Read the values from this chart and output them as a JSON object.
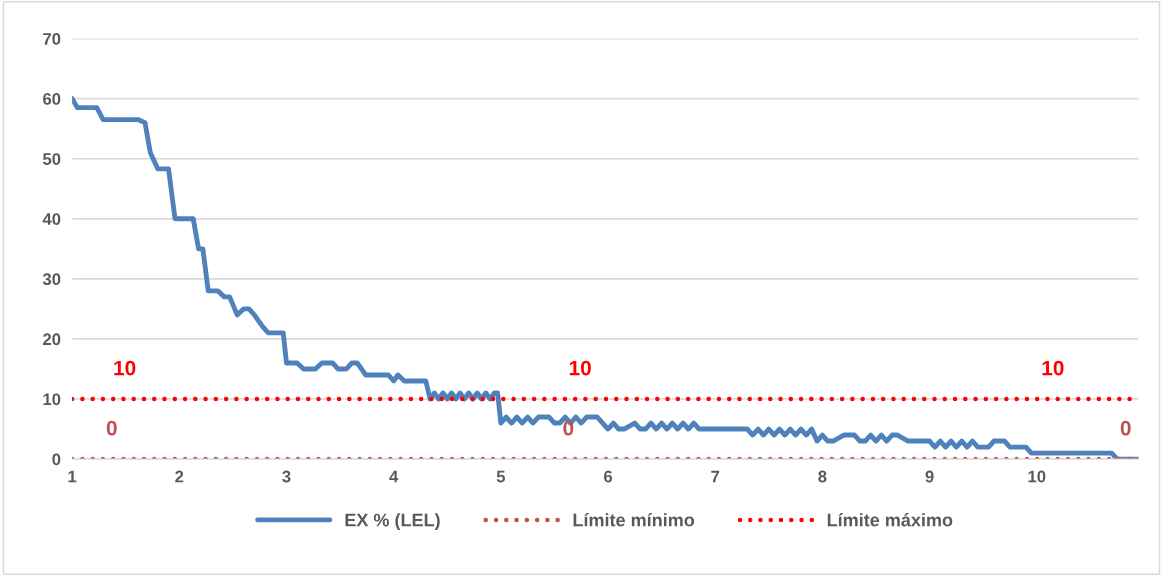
{
  "chart_data": {
    "type": "line",
    "xlim": [
      1,
      10.95
    ],
    "xticks": [
      1,
      2,
      3,
      4,
      5,
      6,
      7,
      8,
      9,
      10
    ],
    "ylim": [
      0,
      70
    ],
    "yticks": [
      0,
      10,
      20,
      30,
      40,
      50,
      60,
      70
    ],
    "grid": "y",
    "legend": "bottom",
    "line_style": "solid",
    "series": [
      {
        "name": "EX % (LEL)",
        "color": "#4f81bd",
        "x": [
          1.0,
          1.05,
          1.23,
          1.29,
          1.62,
          1.68,
          1.73,
          1.8,
          1.9,
          1.96,
          2.13,
          2.18,
          2.22,
          2.27,
          2.36,
          2.42,
          2.47,
          2.54,
          2.6,
          2.65,
          2.7,
          2.78,
          2.83,
          2.97,
          3.0,
          3.1,
          3.16,
          3.27,
          3.33,
          3.43,
          3.48,
          3.56,
          3.61,
          3.66,
          3.74,
          3.95,
          4.0,
          4.04,
          4.1,
          4.3,
          4.34,
          4.38,
          4.42,
          4.46,
          4.5,
          4.54,
          4.58,
          4.62,
          4.66,
          4.7,
          4.74,
          4.78,
          4.82,
          4.86,
          4.9,
          4.94,
          4.97,
          5.0,
          5.05,
          5.1,
          5.15,
          5.2,
          5.25,
          5.3,
          5.35,
          5.45,
          5.5,
          5.55,
          5.6,
          5.65,
          5.7,
          5.75,
          5.8,
          5.9,
          5.95,
          6.0,
          6.05,
          6.1,
          6.15,
          6.25,
          6.3,
          6.35,
          6.4,
          6.45,
          6.5,
          6.55,
          6.6,
          6.65,
          6.7,
          6.75,
          6.8,
          6.85,
          6.9,
          7.3,
          7.35,
          7.4,
          7.45,
          7.5,
          7.55,
          7.6,
          7.65,
          7.7,
          7.75,
          7.8,
          7.85,
          7.9,
          7.95,
          8.0,
          8.05,
          8.1,
          8.2,
          8.3,
          8.35,
          8.4,
          8.45,
          8.5,
          8.55,
          8.6,
          8.65,
          8.7,
          8.8,
          9.0,
          9.05,
          9.1,
          9.15,
          9.2,
          9.25,
          9.3,
          9.35,
          9.4,
          9.45,
          9.55,
          9.6,
          9.7,
          9.75,
          9.9,
          9.95,
          10.7,
          10.75,
          10.95
        ],
        "values": [
          60,
          58.5,
          58.5,
          56.5,
          56.5,
          56,
          51,
          48.3,
          48.3,
          40,
          40,
          35,
          35,
          28,
          28,
          27,
          27,
          24,
          25,
          25,
          24,
          22,
          21,
          21,
          16,
          16,
          15,
          15,
          16,
          16,
          15,
          15,
          16,
          16,
          14,
          14,
          13,
          14,
          13,
          13,
          10,
          11,
          10,
          11,
          10,
          11,
          10,
          11,
          10,
          11,
          10,
          11,
          10,
          11,
          10,
          11,
          11,
          6,
          7,
          6,
          7,
          6,
          7,
          6,
          7,
          7,
          6,
          6,
          7,
          6,
          7,
          6,
          7,
          7,
          6,
          5,
          6,
          5,
          5,
          6,
          5,
          5,
          6,
          5,
          6,
          5,
          6,
          5,
          6,
          5,
          6,
          5,
          5,
          5,
          4,
          5,
          4,
          5,
          4,
          5,
          4,
          5,
          4,
          5,
          4,
          5,
          3,
          4,
          3,
          3,
          4,
          4,
          3,
          3,
          4,
          3,
          4,
          3,
          4,
          4,
          3,
          3,
          2,
          3,
          2,
          3,
          2,
          3,
          2,
          3,
          2,
          2,
          3,
          3,
          2,
          2,
          1,
          1,
          0,
          0
        ]
      },
      {
        "name": "Límite mínimo",
        "color": "#c0504d",
        "line_style": "dotted",
        "x": [
          1,
          10.95
        ],
        "values": [
          0,
          0
        ]
      },
      {
        "name": "Límite máximo",
        "color": "#ff0000",
        "line_style": "dotted",
        "x": [
          1,
          10.95
        ],
        "values": [
          10,
          10
        ]
      }
    ],
    "annotations": [
      {
        "text": "10",
        "x": 1.49,
        "y": 10
      },
      {
        "text": "10",
        "x": 5.74,
        "y": 10
      },
      {
        "text": "10",
        "x": 10.15,
        "y": 10
      },
      {
        "text": "0",
        "x": 1.37,
        "y": 0
      },
      {
        "text": "0",
        "x": 5.63,
        "y": 0
      },
      {
        "text": "0",
        "x": 10.83,
        "y": 0
      }
    ]
  }
}
